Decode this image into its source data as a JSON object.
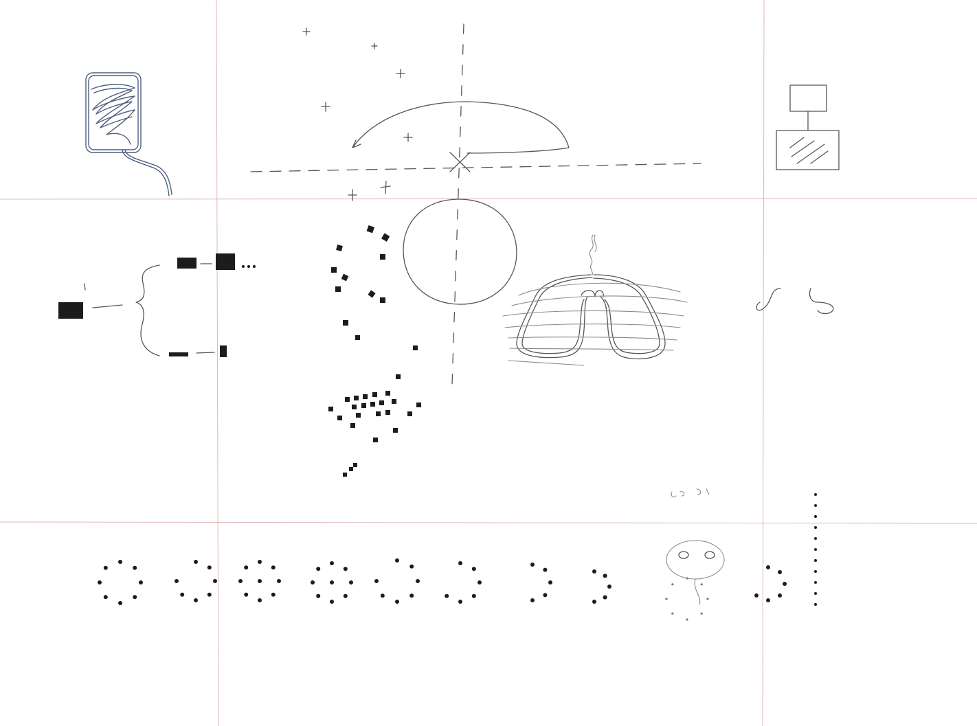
{
  "sheet": {
    "background": "#ffffff",
    "fold_color": "#d8a6a6",
    "pencil_color": "#555555",
    "pen_color": "#4f5f7f",
    "ink_color": "#1c1c1c"
  }
}
